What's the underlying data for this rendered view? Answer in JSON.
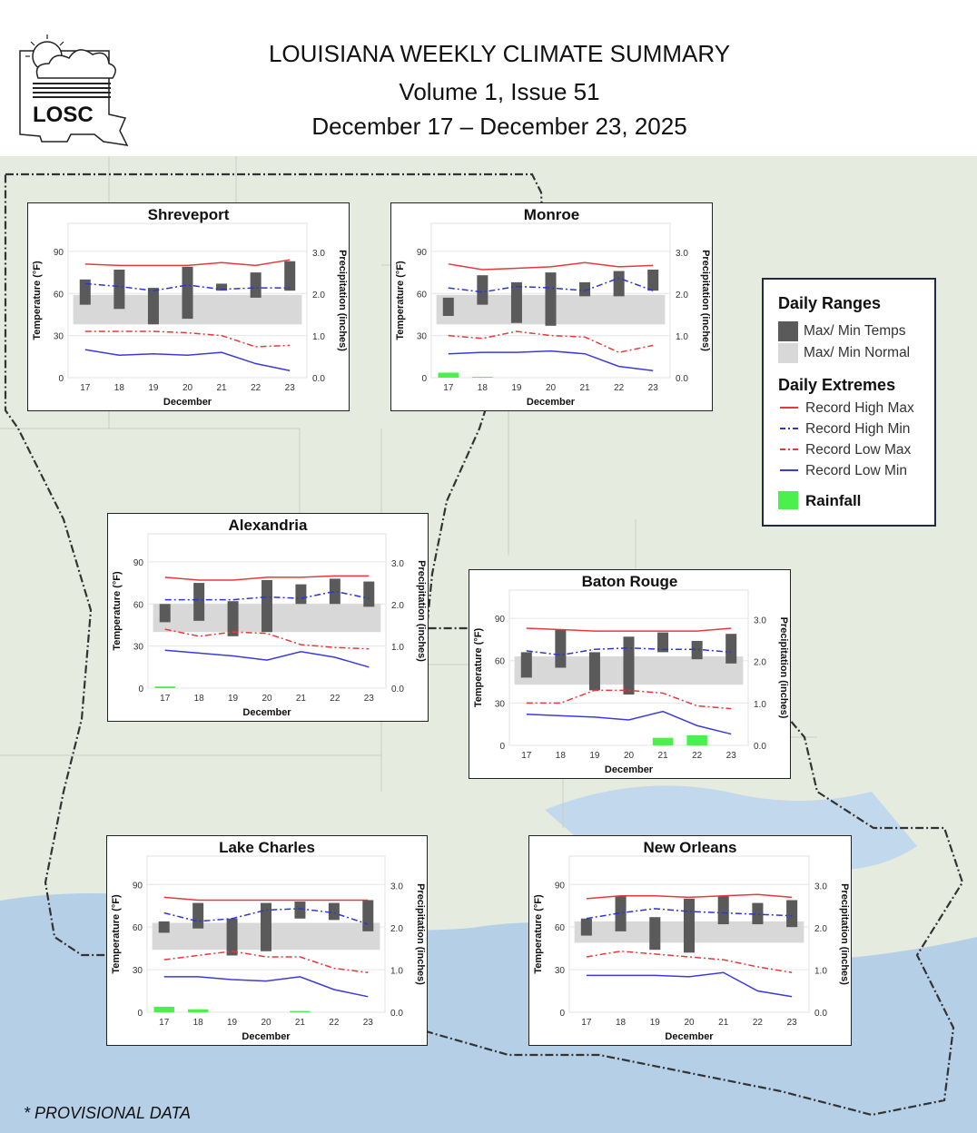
{
  "header": {
    "title": "LOUISIANA WEEKLY CLIMATE SUMMARY",
    "volume": "Volume 1, Issue 51",
    "dates": "December 17 – December 23, 2025",
    "logo_text": "LOSC"
  },
  "legend": {
    "ranges_title": "Daily Ranges",
    "maxmin_temps": "Max/ Min Temps",
    "maxmin_normal": "Max/ Min Normal",
    "extremes_title": "Daily Extremes",
    "record_high_max": "Record High Max",
    "record_high_min": "Record High Min",
    "record_low_max": "Record Low Max",
    "record_low_min": "Record Low Min",
    "rainfall": "Rainfall"
  },
  "colors": {
    "temps": "#5a5a5a",
    "normal": "#d8d8d8",
    "record_high_max": "#e8393a",
    "record_high_min": "#2b35d9",
    "record_low_max": "#e8393a",
    "record_low_min": "#3a3ae0",
    "rainfall": "#4cf04c",
    "map_land": "#e6ebe0",
    "map_water": "#b5cfe6"
  },
  "footer": {
    "note": "* PROVISIONAL DATA"
  },
  "chart_data": [
    {
      "type": "bar",
      "title": "Shreveport",
      "xlabel": "December",
      "ylabel": "Temperature (°F)",
      "y2label": "Precipitation (inches)",
      "x": [
        "17",
        "18",
        "19",
        "20",
        "21",
        "22",
        "23"
      ],
      "ylim": [
        0,
        110
      ],
      "y2lim": [
        0,
        3.7
      ],
      "yticks": [
        0,
        30,
        60,
        90
      ],
      "y2ticks": [
        "0.0",
        "1.0",
        "2.0",
        "3.0"
      ],
      "temp_max": [
        70,
        77,
        64,
        79,
        67,
        75,
        83
      ],
      "temp_min": [
        52,
        49,
        38,
        42,
        62,
        57,
        62
      ],
      "normal_max": [
        59,
        59,
        59,
        59,
        59,
        59,
        59
      ],
      "normal_min": [
        38,
        38,
        38,
        38,
        38,
        38,
        38
      ],
      "record_high_max": [
        81,
        80,
        80,
        80,
        82,
        80,
        84
      ],
      "record_high_min": [
        67,
        65,
        62,
        66,
        63,
        64,
        64
      ],
      "record_low_max": [
        33,
        33,
        33,
        32,
        30,
        22,
        23
      ],
      "record_low_min": [
        20,
        16,
        17,
        16,
        18,
        10,
        5
      ],
      "rainfall": [
        0,
        0,
        0,
        0,
        0,
        0,
        0
      ]
    },
    {
      "type": "bar",
      "title": "Monroe",
      "xlabel": "December",
      "ylabel": "Temperature (°F)",
      "y2label": "Precipitation (inches)",
      "x": [
        "17",
        "18",
        "19",
        "20",
        "21",
        "22",
        "23"
      ],
      "ylim": [
        0,
        110
      ],
      "y2lim": [
        0,
        3.7
      ],
      "yticks": [
        0,
        30,
        60,
        90
      ],
      "y2ticks": [
        "0.0",
        "1.0",
        "2.0",
        "3.0"
      ],
      "temp_max": [
        57,
        73,
        68,
        75,
        68,
        76,
        77
      ],
      "temp_min": [
        44,
        52,
        39,
        37,
        58,
        58,
        62
      ],
      "normal_max": [
        59,
        59,
        59,
        59,
        59,
        59,
        59
      ],
      "normal_min": [
        38,
        38,
        38,
        38,
        38,
        38,
        38
      ],
      "record_high_max": [
        81,
        77,
        78,
        79,
        82,
        79,
        80
      ],
      "record_high_min": [
        64,
        61,
        65,
        64,
        62,
        71,
        62
      ],
      "record_low_max": [
        30,
        28,
        33,
        30,
        29,
        18,
        23
      ],
      "record_low_min": [
        17,
        18,
        18,
        19,
        17,
        8,
        5
      ],
      "rainfall": [
        0.12,
        0.02,
        0,
        0,
        0,
        0,
        0
      ]
    },
    {
      "type": "bar",
      "title": "Alexandria",
      "xlabel": "December",
      "ylabel": "Temperature (°F)",
      "y2label": "Precipitation (inches)",
      "x": [
        "17",
        "18",
        "19",
        "20",
        "21",
        "22",
        "23"
      ],
      "ylim": [
        0,
        110
      ],
      "y2lim": [
        0,
        3.7
      ],
      "yticks": [
        0,
        30,
        60,
        90
      ],
      "y2ticks": [
        "0.0",
        "1.0",
        "2.0",
        "3.0"
      ],
      "temp_max": [
        60,
        75,
        62,
        77,
        74,
        78,
        76
      ],
      "temp_min": [
        47,
        48,
        37,
        40,
        60,
        60,
        58
      ],
      "normal_max": [
        60,
        60,
        60,
        60,
        60,
        60,
        60
      ],
      "normal_min": [
        40,
        40,
        40,
        40,
        40,
        40,
        40
      ],
      "record_high_max": [
        79,
        77,
        77,
        79,
        79,
        80,
        80
      ],
      "record_high_min": [
        63,
        63,
        63,
        65,
        64,
        69,
        64
      ],
      "record_low_max": [
        42,
        37,
        40,
        39,
        31,
        29,
        28
      ],
      "record_low_min": [
        27,
        25,
        23,
        20,
        26,
        22,
        15
      ],
      "rainfall": [
        0.04,
        0,
        0,
        0,
        0,
        0,
        0
      ]
    },
    {
      "type": "bar",
      "title": "Baton Rouge",
      "xlabel": "December",
      "ylabel": "Temperature (°F)",
      "y2label": "Precipitation (inches)",
      "x": [
        "17",
        "18",
        "19",
        "20",
        "21",
        "22",
        "23"
      ],
      "ylim": [
        0,
        110
      ],
      "y2lim": [
        0,
        3.7
      ],
      "yticks": [
        0,
        30,
        60,
        90
      ],
      "y2ticks": [
        "0.0",
        "1.0",
        "2.0",
        "3.0"
      ],
      "temp_max": [
        66,
        82,
        66,
        77,
        80,
        74,
        79
      ],
      "temp_min": [
        48,
        55,
        39,
        36,
        66,
        61,
        58
      ],
      "normal_max": [
        63,
        63,
        63,
        63,
        63,
        63,
        63
      ],
      "normal_min": [
        43,
        43,
        43,
        43,
        43,
        43,
        43
      ],
      "record_high_max": [
        83,
        82,
        81,
        81,
        81,
        81,
        83
      ],
      "record_high_min": [
        67,
        64,
        68,
        69,
        68,
        68,
        66
      ],
      "record_low_max": [
        30,
        30,
        39,
        39,
        37,
        28,
        26
      ],
      "record_low_min": [
        22,
        21,
        20,
        18,
        24,
        14,
        8
      ],
      "rainfall": [
        0,
        0,
        0,
        0,
        0.18,
        0.24,
        0
      ]
    },
    {
      "type": "bar",
      "title": "Lake Charles",
      "xlabel": "December",
      "ylabel": "Temperature (°F)",
      "y2label": "Precipitation (inches)",
      "x": [
        "17",
        "18",
        "19",
        "20",
        "21",
        "22",
        "23"
      ],
      "ylim": [
        0,
        110
      ],
      "y2lim": [
        0,
        3.7
      ],
      "yticks": [
        0,
        30,
        60,
        90
      ],
      "y2ticks": [
        "0.0",
        "1.0",
        "2.0",
        "3.0"
      ],
      "temp_max": [
        64,
        77,
        66,
        77,
        78,
        77,
        79
      ],
      "temp_min": [
        56,
        59,
        40,
        43,
        66,
        65,
        57
      ],
      "normal_max": [
        63,
        63,
        63,
        63,
        63,
        63,
        63
      ],
      "normal_min": [
        44,
        44,
        44,
        44,
        44,
        44,
        44
      ],
      "record_high_max": [
        81,
        79,
        79,
        79,
        79,
        79,
        79
      ],
      "record_high_min": [
        70,
        64,
        66,
        72,
        73,
        70,
        62
      ],
      "record_low_max": [
        37,
        40,
        43,
        39,
        39,
        31,
        28
      ],
      "record_low_min": [
        25,
        25,
        23,
        22,
        25,
        16,
        11
      ],
      "rainfall": [
        0.13,
        0.07,
        0,
        0,
        0.03,
        0,
        0
      ]
    },
    {
      "type": "bar",
      "title": "New Orleans",
      "xlabel": "December",
      "ylabel": "Temperature (°F)",
      "y2label": "Precipitation (inches)",
      "x": [
        "17",
        "18",
        "19",
        "20",
        "21",
        "22",
        "23"
      ],
      "ylim": [
        0,
        110
      ],
      "y2lim": [
        0,
        3.7
      ],
      "yticks": [
        0,
        30,
        60,
        90
      ],
      "y2ticks": [
        "0.0",
        "1.0",
        "2.0",
        "3.0"
      ],
      "temp_max": [
        66,
        82,
        67,
        80,
        82,
        77,
        79
      ],
      "temp_min": [
        54,
        57,
        44,
        42,
        62,
        62,
        60
      ],
      "normal_max": [
        64,
        64,
        64,
        64,
        64,
        64,
        64
      ],
      "normal_min": [
        49,
        49,
        49,
        49,
        49,
        49,
        49
      ],
      "record_high_max": [
        80,
        82,
        82,
        81,
        82,
        83,
        81
      ],
      "record_high_min": [
        66,
        70,
        73,
        71,
        70,
        69,
        68
      ],
      "record_low_max": [
        39,
        43,
        41,
        39,
        37,
        32,
        28
      ],
      "record_low_min": [
        26,
        26,
        26,
        25,
        28,
        15,
        11
      ],
      "rainfall": [
        0,
        0,
        0,
        0,
        0,
        0,
        0
      ]
    }
  ]
}
